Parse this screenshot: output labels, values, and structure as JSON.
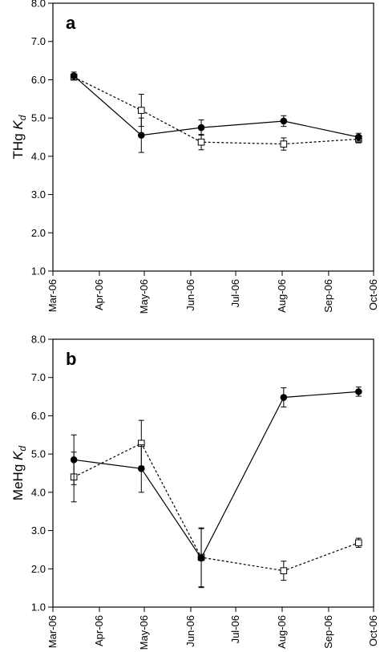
{
  "chart_data": [
    {
      "type": "line",
      "panel_label": "a",
      "ylabel": "THg",
      "ylabel_subscript": "K",
      "ylabel_subscript_d": "d",
      "xlabel": "",
      "ylim": [
        1.0,
        8.0
      ],
      "yticks": [
        "1.0",
        "2.0",
        "3.0",
        "4.0",
        "5.0",
        "6.0",
        "7.0",
        "8.0"
      ],
      "xticks": [
        "Mar-06",
        "Apr-06",
        "May-06",
        "Jun-06",
        "Jul-06",
        "Aug-06",
        "Sep-06",
        "Oct-06"
      ],
      "xlim": [
        "2006-03-01",
        "2006-10-01"
      ],
      "grid": false,
      "series": [
        {
          "marker": "filled-circle",
          "line": "solid",
          "x": [
            "2006-03-15",
            "2006-04-29",
            "2006-06-08",
            "2006-08-02",
            "2006-09-21"
          ],
          "y": [
            6.1,
            4.55,
            4.75,
            4.92,
            4.5
          ],
          "err": [
            0.1,
            0.45,
            0.2,
            0.14,
            0.1
          ]
        },
        {
          "marker": "open-square",
          "line": "dashed",
          "x": [
            "2006-03-15",
            "2006-04-29",
            "2006-06-08",
            "2006-08-02",
            "2006-09-21"
          ],
          "y": [
            6.07,
            5.2,
            4.37,
            4.32,
            4.45
          ],
          "err": [
            0.07,
            0.42,
            0.2,
            0.16,
            0.1
          ]
        }
      ]
    },
    {
      "type": "line",
      "panel_label": "b",
      "ylabel": "MeHg",
      "ylabel_subscript": "K",
      "ylabel_subscript_d": "d",
      "xlabel": "",
      "ylim": [
        1.0,
        8.0
      ],
      "yticks": [
        "1.0",
        "2.0",
        "3.0",
        "4.0",
        "5.0",
        "6.0",
        "7.0",
        "8.0"
      ],
      "xticks": [
        "Mar-06",
        "Apr-06",
        "May-06",
        "Jun-06",
        "Jul-06",
        "Aug-06",
        "Sep-06",
        "Oct-06"
      ],
      "xlim": [
        "2006-03-01",
        "2006-10-01"
      ],
      "grid": false,
      "series": [
        {
          "marker": "filled-circle",
          "line": "solid",
          "x": [
            "2006-03-15",
            "2006-04-29",
            "2006-06-08",
            "2006-08-02",
            "2006-09-21"
          ],
          "y": [
            4.85,
            4.62,
            2.28,
            6.48,
            6.63
          ],
          "err": [
            0.65,
            0.62,
            0.77,
            0.25,
            0.12
          ]
        },
        {
          "marker": "open-square",
          "line": "dashed",
          "x": [
            "2006-03-15",
            "2006-04-29",
            "2006-06-08",
            "2006-08-02",
            "2006-09-21"
          ],
          "y": [
            4.4,
            5.28,
            2.3,
            1.95,
            2.68
          ],
          "err": [
            0.65,
            0.6,
            0.77,
            0.25,
            0.12
          ]
        }
      ]
    }
  ]
}
